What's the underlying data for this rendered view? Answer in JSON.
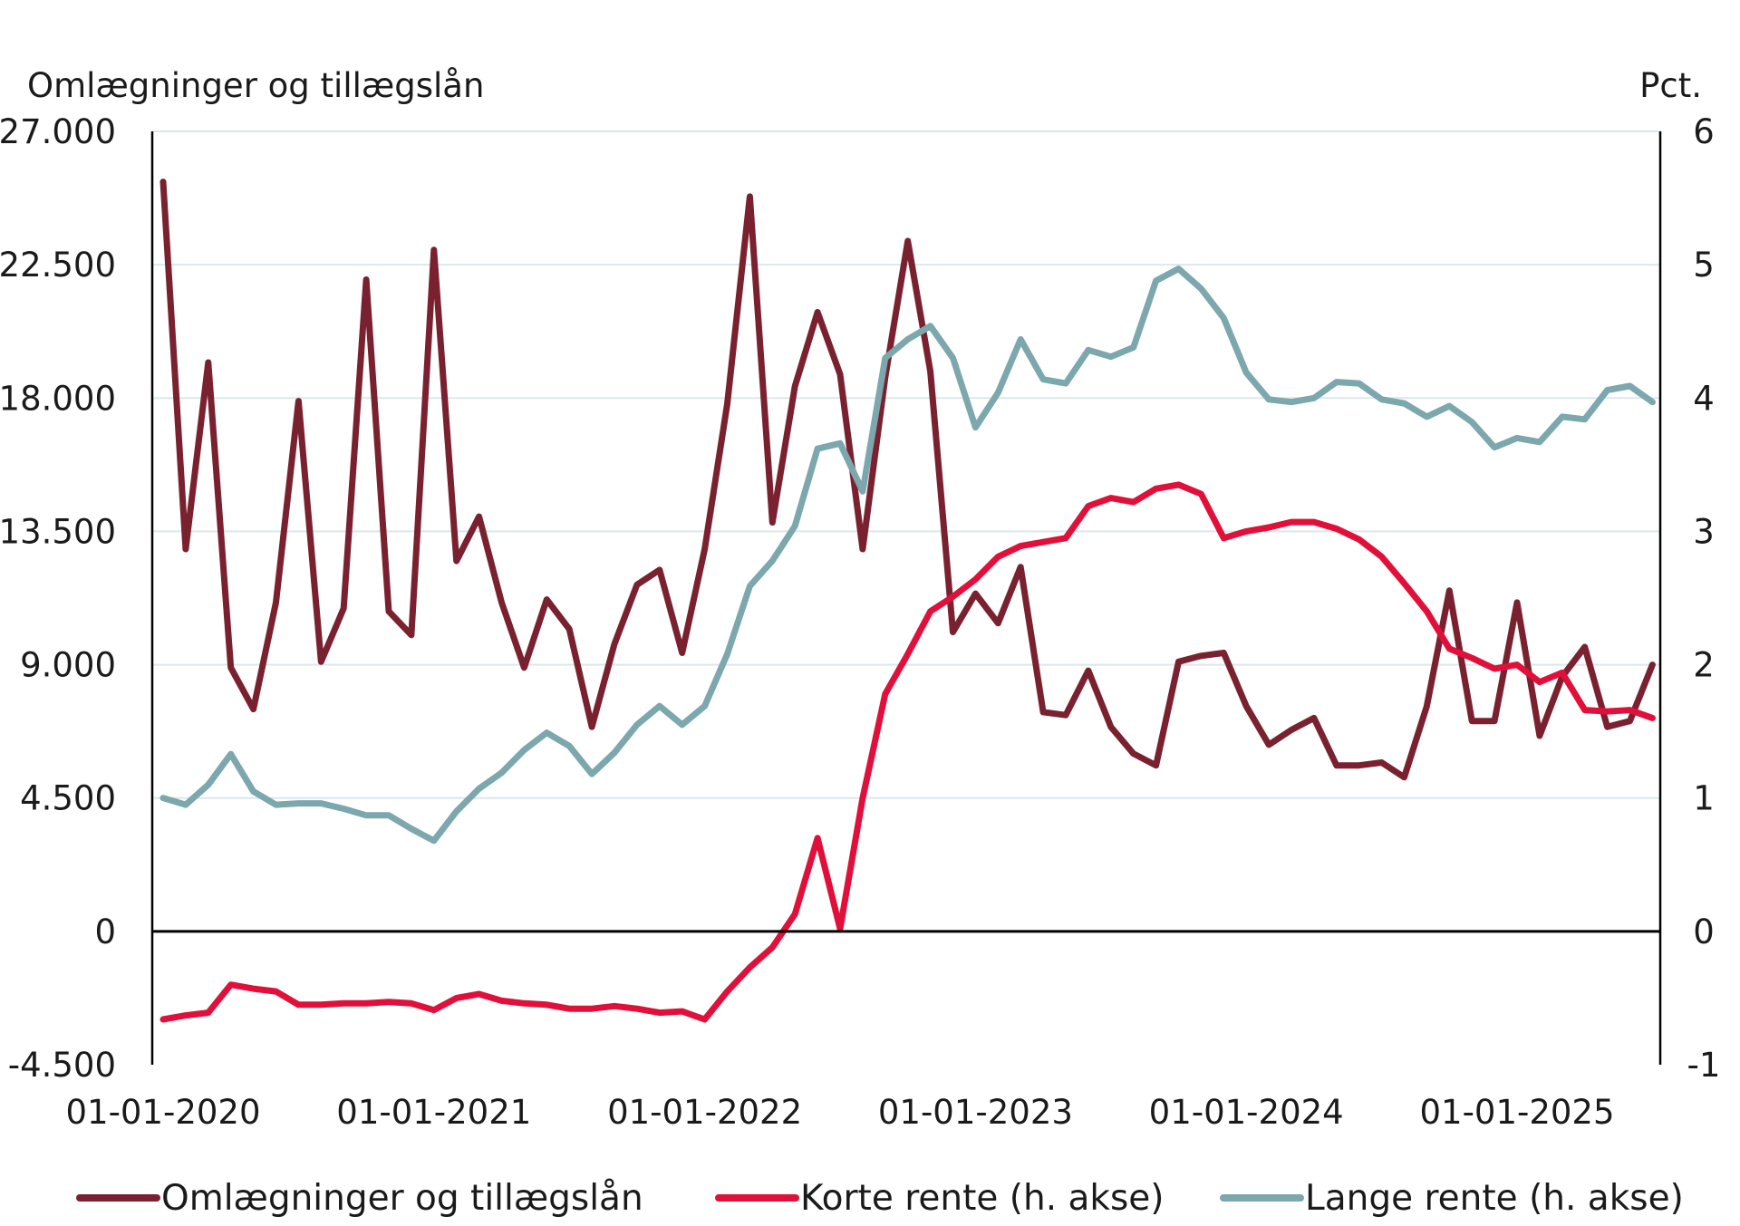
{
  "chart_data": {
    "type": "line",
    "left_axis": {
      "title": "Omlægninger og tillægslån",
      "range": [
        -4500,
        27000
      ],
      "ticks": [
        -4500,
        0,
        4500,
        9000,
        13500,
        18000,
        22500,
        27000
      ],
      "tick_labels": [
        "-4.500",
        "0",
        "4.500",
        "9.000",
        "13.500",
        "18.000",
        "22.500",
        "27.000"
      ]
    },
    "right_axis": {
      "title": "Pct.",
      "range": [
        -1,
        6
      ],
      "ticks": [
        -1,
        0,
        1,
        2,
        3,
        4,
        5,
        6
      ],
      "tick_labels": [
        "-1",
        "0",
        "1",
        "2",
        "3",
        "4",
        "5",
        "6"
      ]
    },
    "x_axis": {
      "start": "2020-01",
      "end": "2025-07",
      "tick_labels": [
        "01-01-2020",
        "01-01-2021",
        "01-01-2022",
        "01-01-2023",
        "01-01-2024",
        "01-01-2025"
      ],
      "tick_months": [
        0,
        12,
        24,
        36,
        48,
        60
      ]
    },
    "grid": "horizontal",
    "legend_position": "bottom",
    "series": [
      {
        "name": "Omlægninger og tillægslån",
        "axis": "left",
        "color": "#7a2130",
        "values": [
          25300,
          12900,
          19200,
          8900,
          7500,
          11100,
          17900,
          9100,
          10900,
          22000,
          10800,
          10000,
          23000,
          12500,
          14000,
          11100,
          8900,
          11200,
          10200,
          6900,
          9700,
          11700,
          12200,
          9400,
          12900,
          17800,
          24800,
          13800,
          18400,
          20900,
          18800,
          12900,
          18700,
          23300,
          18900,
          10100,
          11400,
          10400,
          12300,
          7400,
          7300,
          8800,
          6900,
          6000,
          5600,
          9100,
          9300,
          9400,
          7600,
          6300,
          6800,
          7200,
          5600,
          5600,
          5700,
          5200,
          7600,
          11500,
          7100,
          7100,
          11100,
          6600,
          8600,
          9600,
          6900,
          7100,
          9000
        ]
      },
      {
        "name": "Korte rente (h. akse)",
        "axis": "right",
        "color": "#e0103a",
        "values": [
          -0.66,
          -0.63,
          -0.61,
          -0.4,
          -0.43,
          -0.45,
          -0.55,
          -0.55,
          -0.54,
          -0.54,
          -0.53,
          -0.54,
          -0.59,
          -0.5,
          -0.47,
          -0.52,
          -0.54,
          -0.55,
          -0.58,
          -0.58,
          -0.56,
          -0.58,
          -0.61,
          -0.6,
          -0.66,
          -0.45,
          -0.27,
          -0.12,
          0.13,
          0.7,
          0.02,
          1.0,
          1.78,
          2.08,
          2.4,
          2.51,
          2.64,
          2.81,
          2.89,
          2.92,
          2.95,
          3.19,
          3.25,
          3.22,
          3.32,
          3.35,
          3.28,
          2.95,
          3.0,
          3.03,
          3.07,
          3.07,
          3.02,
          2.94,
          2.81,
          2.61,
          2.4,
          2.12,
          2.05,
          1.97,
          2.0,
          1.87,
          1.94,
          1.66,
          1.65,
          1.66,
          1.6
        ]
      },
      {
        "name": "Lange rente (h. akse)",
        "axis": "right",
        "color": "#7ba7ad",
        "values": [
          1.0,
          0.95,
          1.1,
          1.33,
          1.05,
          0.95,
          0.96,
          0.96,
          0.92,
          0.87,
          0.87,
          0.77,
          0.68,
          0.9,
          1.07,
          1.19,
          1.36,
          1.49,
          1.39,
          1.18,
          1.34,
          1.55,
          1.69,
          1.55,
          1.69,
          2.08,
          2.59,
          2.78,
          3.04,
          3.62,
          3.66,
          3.3,
          4.3,
          4.44,
          4.54,
          4.3,
          3.78,
          4.04,
          4.44,
          4.14,
          4.11,
          4.36,
          4.31,
          4.38,
          4.88,
          4.97,
          4.82,
          4.6,
          4.19,
          3.99,
          3.97,
          4.0,
          4.12,
          4.11,
          3.99,
          3.96,
          3.86,
          3.94,
          3.82,
          3.63,
          3.7,
          3.67,
          3.86,
          3.84,
          4.06,
          4.09,
          3.97
        ]
      }
    ]
  },
  "legend": {
    "items": [
      {
        "label": "Omlægninger og tillægslån",
        "color": "#7a2130"
      },
      {
        "label": "Korte rente (h. akse)",
        "color": "#e0103a"
      },
      {
        "label": "Lange rente (h. akse)",
        "color": "#7ba7ad"
      }
    ]
  }
}
